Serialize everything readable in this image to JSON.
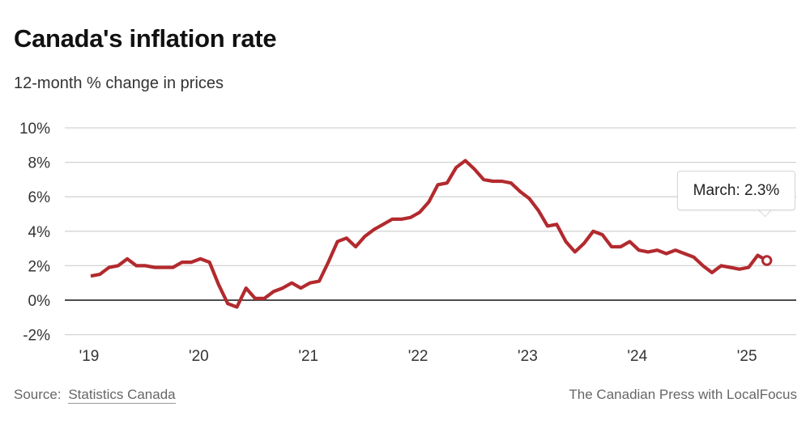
{
  "header": {
    "title": "Canada's inflation rate",
    "subtitle": "12-month % change in prices"
  },
  "tooltip": {
    "label": "March: 2.3%"
  },
  "footer": {
    "source_label": "Source:",
    "source_link": "Statistics Canada",
    "credit": "The Canadian Press with LocalFocus"
  },
  "colors": {
    "line": "#b22a2e",
    "grid": "#d4d4d4",
    "zero_line": "#111111"
  },
  "chart_data": {
    "type": "line",
    "title": "Canada's inflation rate",
    "subtitle": "12-month % change in prices",
    "xlabel": "",
    "ylabel": "",
    "ylim": [
      -2,
      10
    ],
    "yticks": [
      10,
      8,
      6,
      4,
      2,
      0,
      -2
    ],
    "ytick_labels": [
      "10%",
      "8%",
      "6%",
      "4%",
      "2%",
      "0%",
      "-2%"
    ],
    "xticks": [
      "'19",
      "'20",
      "'21",
      "'22",
      "'23",
      "'24",
      "'25"
    ],
    "grid": true,
    "legend": "none",
    "annotation": "March: 2.3%",
    "start": "2019-01",
    "frequency": "monthly",
    "series": [
      {
        "name": "12-month % change in CPI",
        "values": [
          1.4,
          1.5,
          1.9,
          2.0,
          2.4,
          2.0,
          2.0,
          1.9,
          1.9,
          1.9,
          2.2,
          2.2,
          2.4,
          2.2,
          0.9,
          -0.2,
          -0.4,
          0.7,
          0.1,
          0.1,
          0.5,
          0.7,
          1.0,
          0.7,
          1.0,
          1.1,
          2.2,
          3.4,
          3.6,
          3.1,
          3.7,
          4.1,
          4.4,
          4.7,
          4.7,
          4.8,
          5.1,
          5.7,
          6.7,
          6.8,
          7.7,
          8.1,
          7.6,
          7.0,
          6.9,
          6.9,
          6.8,
          6.3,
          5.9,
          5.2,
          4.3,
          4.4,
          3.4,
          2.8,
          3.3,
          4.0,
          3.8,
          3.1,
          3.1,
          3.4,
          2.9,
          2.8,
          2.9,
          2.7,
          2.9,
          2.7,
          2.5,
          2.0,
          1.6,
          2.0,
          1.9,
          1.8,
          1.9,
          2.6,
          2.3
        ]
      }
    ]
  }
}
